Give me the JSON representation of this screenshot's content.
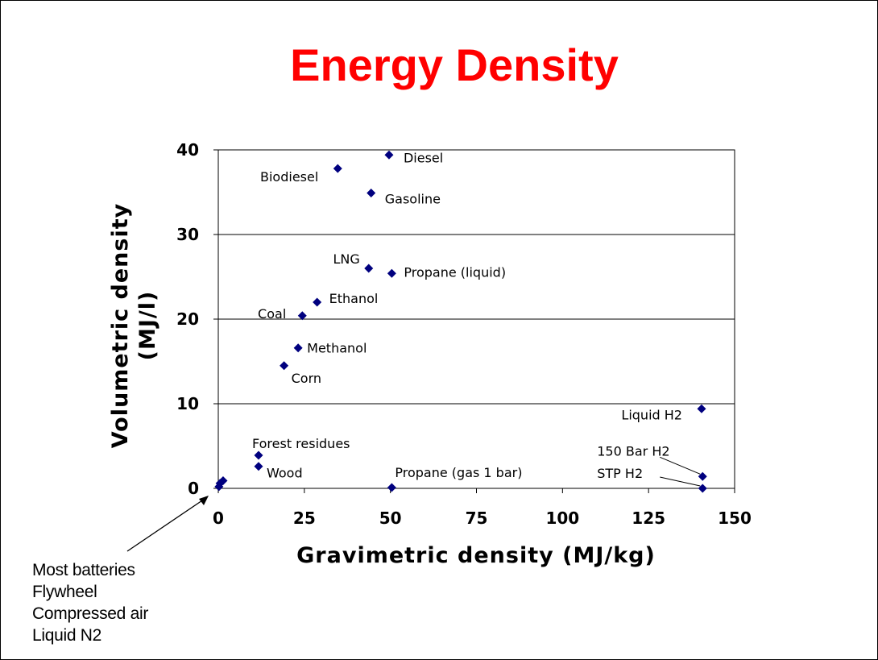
{
  "colors": {
    "title": "#ff0000",
    "marker": "#00007f",
    "grid": "#000000"
  },
  "note": {
    "lines": [
      "Most batteries",
      "Flywheel",
      "Compressed air",
      "Liquid N2"
    ]
  },
  "chart_data": {
    "type": "scatter",
    "title": "Energy Density",
    "xlabel": "Gravimetric density (MJ/kg)",
    "ylabel_lines": [
      "Volumetric density",
      "(MJ/l)"
    ],
    "xlim": [
      0,
      150
    ],
    "ylim": [
      0,
      40
    ],
    "xticks": [
      0,
      25,
      50,
      75,
      100,
      125,
      150
    ],
    "yticks": [
      0,
      10,
      20,
      30,
      40
    ],
    "grid": "horizontal",
    "points": [
      {
        "label": "Diesel",
        "x": 49.6,
        "y": 39.4
      },
      {
        "label": "Biodiesel",
        "x": 34.7,
        "y": 37.8
      },
      {
        "label": "Gasoline",
        "x": 44.4,
        "y": 34.9
      },
      {
        "label": "LNG",
        "x": 43.7,
        "y": 26.0
      },
      {
        "label": "Propane (liquid)",
        "x": 50.4,
        "y": 25.4
      },
      {
        "label": "Ethanol",
        "x": 28.7,
        "y": 22.0
      },
      {
        "label": "Coal",
        "x": 24.4,
        "y": 20.4
      },
      {
        "label": "Methanol",
        "x": 23.2,
        "y": 16.6
      },
      {
        "label": "Corn",
        "x": 19.1,
        "y": 14.5
      },
      {
        "label": "Liquid H2",
        "x": 140.4,
        "y": 9.4
      },
      {
        "label": "Forest residues",
        "x": 11.7,
        "y": 3.9
      },
      {
        "label": "Wood",
        "x": 11.7,
        "y": 2.6
      },
      {
        "label": "Propane (gas 1 bar)",
        "x": 50.4,
        "y": 0.1
      },
      {
        "label": "150 Bar H2",
        "x": 140.7,
        "y": 1.4
      },
      {
        "label": "STP H2",
        "x": 140.7,
        "y": 0.0
      },
      {
        "label": "",
        "x": 1.4,
        "y": 0.9
      },
      {
        "label": "",
        "x": 0.5,
        "y": 0.6
      },
      {
        "label": "",
        "x": 0.2,
        "y": 0.2
      }
    ]
  }
}
